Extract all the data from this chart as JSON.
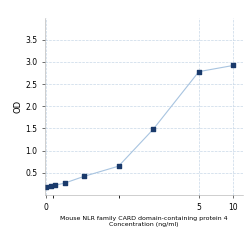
{
  "title_line1": "Mouse NLR family CARD domain-containing protein 4",
  "title_line2": "Concentration (ng/ml)",
  "ylabel": "OD",
  "x_values": [
    0.0,
    0.0625,
    0.125,
    0.25,
    0.5,
    1.0,
    2.0,
    5.0,
    10.0
  ],
  "y_values": [
    0.175,
    0.195,
    0.22,
    0.27,
    0.42,
    0.65,
    1.48,
    2.78,
    2.92
  ],
  "line_color": "#a8c4e0",
  "marker_color": "#1a3a6b",
  "marker_size": 4,
  "background_color": "#ffffff",
  "grid_color": "#c8d8e8",
  "ylim": [
    0,
    4.0
  ],
  "yticks": [
    0.5,
    1.0,
    1.5,
    2.0,
    2.5,
    3.0,
    3.5
  ],
  "xtick_val": 5,
  "xtick_label": "5",
  "xlabel_fontsize": 4.5,
  "ylabel_fontsize": 6,
  "tick_fontsize": 5.5,
  "figsize": [
    2.5,
    2.5
  ],
  "dpi": 100
}
